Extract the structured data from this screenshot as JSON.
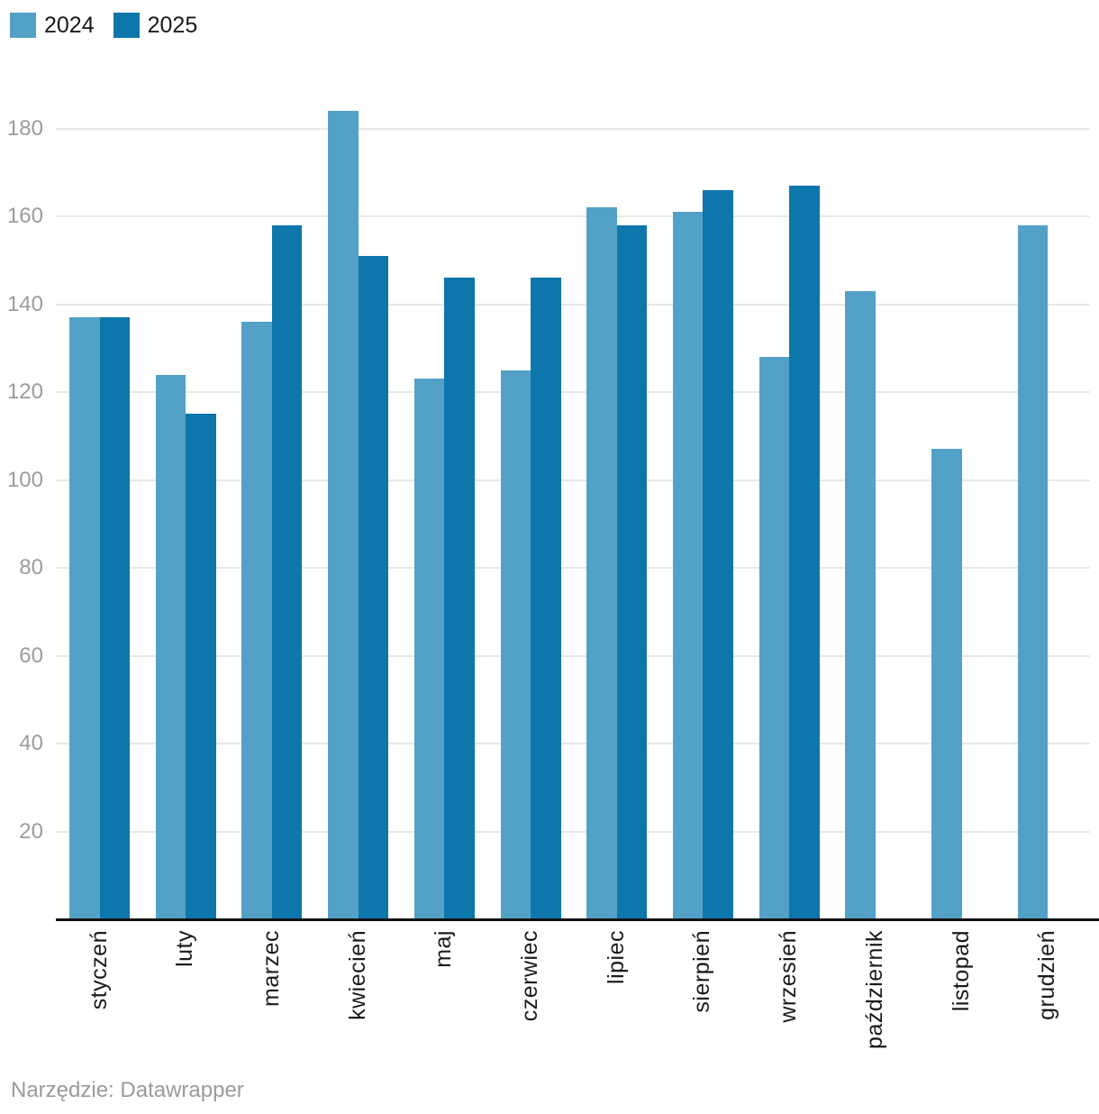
{
  "legend": {
    "items": [
      {
        "label": "2024",
        "color": "#54a1c7"
      },
      {
        "label": "2025",
        "color": "#0d77ab"
      }
    ]
  },
  "footer": {
    "text": "Narzędzie: Datawrapper"
  },
  "colors": {
    "series_2024": "#54a1c7",
    "series_2025": "#0d77ab",
    "gridline": "#e8e8e8",
    "axis_line": "#121212",
    "y_tick_label": "#9c9c9c",
    "x_tick_label": "#1b1b1b",
    "footer_text": "#9a9a9a",
    "background": "#ffffff"
  },
  "chart_data": {
    "type": "bar",
    "title": "",
    "xlabel": "",
    "ylabel": "",
    "categories": [
      "styczeń",
      "luty",
      "marzec",
      "kwiecień",
      "maj",
      "czerwiec",
      "lipiec",
      "sierpień",
      "wrzesień",
      "październik",
      "listopad",
      "grudzień"
    ],
    "series": [
      {
        "name": "2024",
        "color": "#54a1c7",
        "values": [
          137,
          124,
          136,
          184,
          123,
          125,
          162,
          161,
          128,
          143,
          107,
          158
        ]
      },
      {
        "name": "2025",
        "color": "#0d77ab",
        "values": [
          137,
          115,
          158,
          151,
          146,
          146,
          158,
          166,
          167,
          null,
          null,
          null
        ]
      }
    ],
    "ylim": [
      0,
      190
    ],
    "yticks": [
      20,
      40,
      60,
      80,
      100,
      120,
      140,
      160,
      180
    ],
    "grid": true,
    "legend_position": "top-left",
    "bar_orientation": "vertical",
    "x_label_rotation_deg": 90
  }
}
